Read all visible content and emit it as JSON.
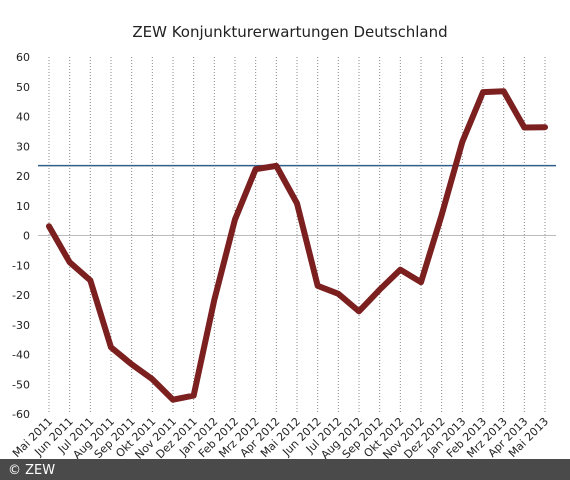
{
  "chart_data": {
    "type": "line",
    "title": "ZEW Konjunkturerwartungen Deutschland",
    "categories": [
      "Mai 2011",
      "Jun 2011",
      "Jul 2011",
      "Aug 2011",
      "Sep 2011",
      "Okt 2011",
      "Nov 2011",
      "Dez 2011",
      "Jan 2012",
      "Feb 2012",
      "Mrz 2012",
      "Apr 2012",
      "Mai 2012",
      "Jun 2012",
      "Jul 2012",
      "Aug 2012",
      "Sep 2012",
      "Okt 2012",
      "Nov 2012",
      "Dez 2012",
      "Jan 2013",
      "Feb 2013",
      "Mrz 2013",
      "Apr 2013",
      "Mai 2013"
    ],
    "values": [
      3.1,
      -9.0,
      -15.1,
      -37.6,
      -43.3,
      -48.3,
      -55.2,
      -53.8,
      -21.6,
      5.4,
      22.3,
      23.4,
      10.8,
      -16.9,
      -19.6,
      -25.5,
      -18.2,
      -11.5,
      -15.7,
      6.9,
      31.5,
      48.2,
      48.5,
      36.3,
      36.4
    ],
    "color": "#7b1f1f",
    "ylim": [
      -60,
      60
    ],
    "yticks": [
      -60,
      -50,
      -40,
      -30,
      -20,
      -10,
      0,
      10,
      20,
      30,
      40,
      50,
      60
    ],
    "grid": true,
    "reference_line": {
      "value": 23.5,
      "color": "#2f5f8a"
    },
    "footer": "© ZEW"
  }
}
